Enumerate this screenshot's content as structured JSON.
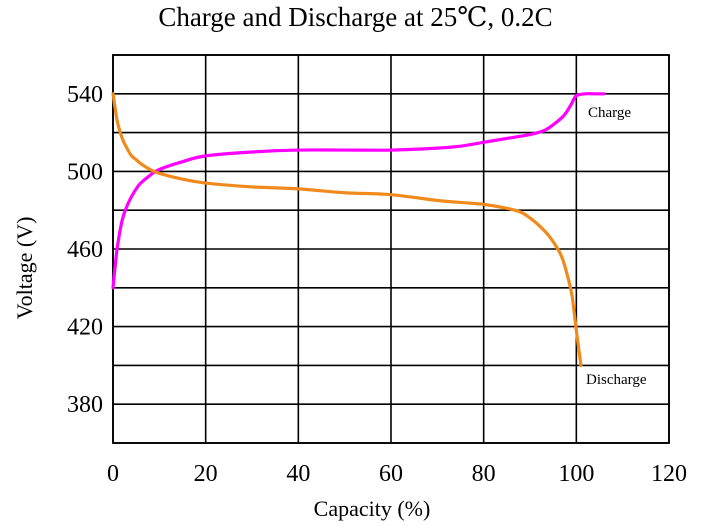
{
  "chart_data": {
    "type": "line",
    "title": "Charge and Discharge at 25℃, 0.2C",
    "xlabel": "Capacity (%)",
    "ylabel": "Voltage (V)",
    "xlim": [
      0,
      120
    ],
    "ylim": [
      360,
      560
    ],
    "xticks": [
      0,
      20,
      40,
      60,
      80,
      100,
      120
    ],
    "yticks": [
      380,
      420,
      460,
      500,
      540
    ],
    "grid": true,
    "series": [
      {
        "name": "Charge",
        "color": "#ff00ff",
        "x": [
          0,
          0.5,
          1,
          2,
          3,
          4,
          5,
          6,
          8,
          10,
          15,
          20,
          30,
          40,
          50,
          60,
          70,
          75,
          80,
          85,
          90,
          93,
          95,
          97,
          98,
          99,
          100,
          102,
          104,
          106
        ],
        "y": [
          440,
          452,
          462,
          475,
          482,
          487,
          491,
          494,
          498,
          501,
          505,
          508,
          510,
          511,
          511,
          511,
          512,
          513,
          515,
          517,
          519,
          521,
          524,
          528,
          531,
          535,
          539,
          540,
          540,
          540
        ]
      },
      {
        "name": "Discharge",
        "color": "#f08a1c",
        "x": [
          0,
          0.5,
          1,
          2,
          3,
          4,
          5,
          6,
          8,
          10,
          15,
          20,
          30,
          40,
          50,
          60,
          70,
          75,
          80,
          85,
          88,
          90,
          92,
          94,
          96,
          97,
          98,
          99,
          99.5,
          100,
          100.5,
          101
        ],
        "y": [
          540,
          532,
          525,
          517,
          512,
          508,
          506,
          504,
          501,
          499,
          496,
          494,
          492,
          491,
          489,
          488,
          485,
          484,
          483,
          481,
          479,
          476,
          472,
          467,
          460,
          455,
          447,
          437,
          428,
          418,
          409,
          400
        ]
      }
    ]
  }
}
